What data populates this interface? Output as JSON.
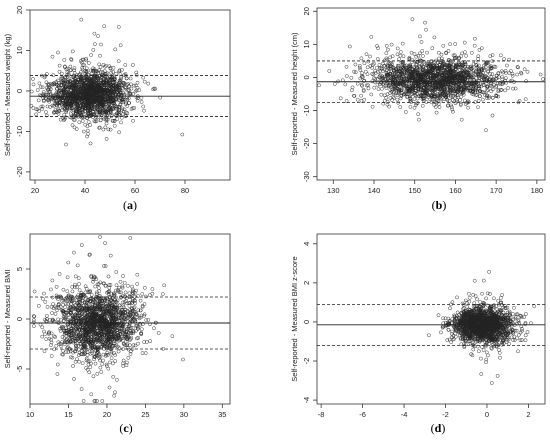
{
  "chart_data": [
    {
      "type": "scatter",
      "panel_label": "a",
      "ylabel": "Self-reported - Measured weight (kg)",
      "xlim": [
        18,
        98
      ],
      "ylim": [
        -22,
        20
      ],
      "xticks": [
        20,
        40,
        60,
        80
      ],
      "yticks": [
        -20,
        -10,
        0,
        10,
        20
      ],
      "lines": {
        "solid": -1.3,
        "dashed": [
          3.8,
          -6.3
        ]
      },
      "cloud": {
        "cx": 42,
        "cy": -1.0,
        "sx": 8,
        "sy": 2.8,
        "n": 1700,
        "seed": 11
      }
    },
    {
      "type": "scatter",
      "panel_label": "b",
      "ylabel": "Self-reported - Measured height (cm)",
      "xlim": [
        126,
        182
      ],
      "ylim": [
        -31,
        21
      ],
      "xticks": [
        130,
        140,
        150,
        160,
        170,
        180
      ],
      "yticks": [
        -30,
        -20,
        -10,
        0,
        10,
        20
      ],
      "lines": {
        "solid": -1.3,
        "dashed": [
          5.0,
          -7.6
        ]
      },
      "cloud": {
        "cx": 155,
        "cy": -0.8,
        "sx": 8,
        "sy": 3.2,
        "n": 1700,
        "seed": 23
      }
    },
    {
      "type": "scatter",
      "panel_label": "c",
      "ylabel": "Self-reported - Measured BMI",
      "xlim": [
        10,
        36
      ],
      "ylim": [
        -8.5,
        8.5
      ],
      "xticks": [
        10,
        15,
        20,
        25,
        30,
        35
      ],
      "yticks": [
        -5,
        0,
        5
      ],
      "lines": {
        "solid": -0.4,
        "dashed": [
          2.2,
          -3.0
        ]
      },
      "cloud": {
        "cx": 18.8,
        "cy": -0.4,
        "sx": 2.8,
        "sy": 1.7,
        "n": 1700,
        "seed": 37
      }
    },
    {
      "type": "scatter",
      "panel_label": "d",
      "ylabel": "Self-reported - Measured BMI z-score",
      "xlim": [
        -8.2,
        2.8
      ],
      "ylim": [
        -4.2,
        4.5
      ],
      "xticks": [
        -8,
        -6,
        -4,
        -2,
        0,
        2
      ],
      "yticks": [
        -4,
        -2,
        0,
        2,
        4
      ],
      "lines": {
        "solid": -0.15,
        "dashed": [
          0.9,
          -1.2
        ]
      },
      "cloud": {
        "cx": -0.2,
        "cy": -0.15,
        "sx": 0.75,
        "sy": 0.45,
        "n": 1500,
        "seed": 53
      }
    }
  ],
  "captions": [
    {
      "open": "(",
      "label": "a",
      "close": ")"
    },
    {
      "open": "(",
      "label": "b",
      "close": ")"
    },
    {
      "open": "(",
      "label": "c",
      "close": ")"
    },
    {
      "open": "(",
      "label": "d",
      "close": ")"
    }
  ]
}
